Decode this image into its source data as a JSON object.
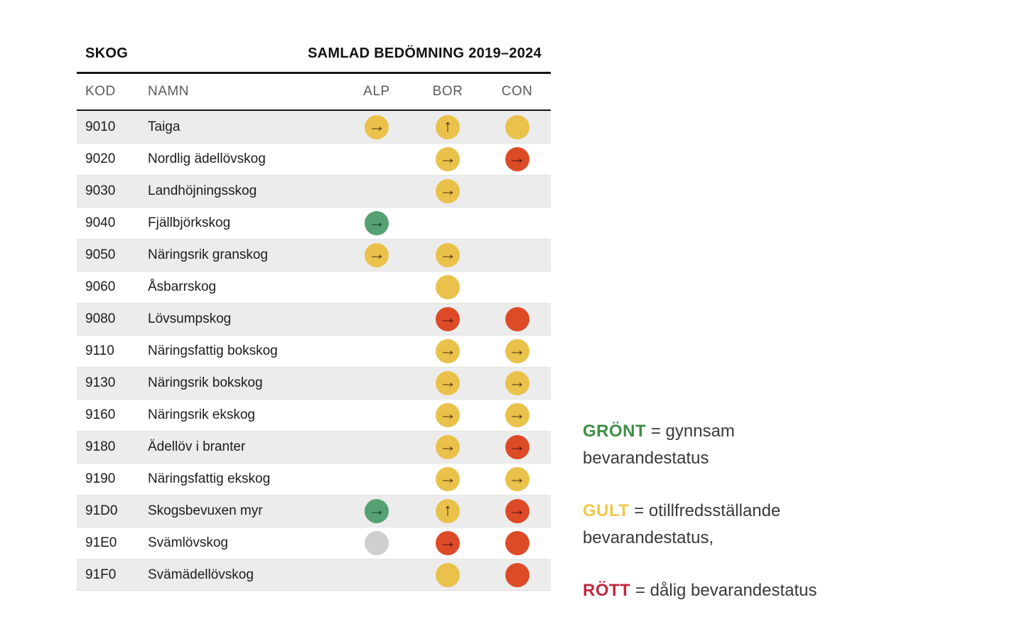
{
  "table": {
    "title_left": "SKOG",
    "title_right": "SAMLAD BEDÖMNING 2019–2024",
    "columns": {
      "kod": "KOD",
      "namn": "NAMN",
      "alp": "ALP",
      "bor": "BOR",
      "con": "CON"
    },
    "rows": [
      {
        "kod": "9010",
        "namn": "Taiga",
        "alp": {
          "color": "yellow",
          "trend": "right"
        },
        "bor": {
          "color": "yellow",
          "trend": "up"
        },
        "con": {
          "color": "yellow",
          "trend": "none"
        }
      },
      {
        "kod": "9020",
        "namn": "Nordlig ädellövskog",
        "alp": null,
        "bor": {
          "color": "yellow",
          "trend": "right"
        },
        "con": {
          "color": "red",
          "trend": "right"
        }
      },
      {
        "kod": "9030",
        "namn": "Landhöjningsskog",
        "alp": null,
        "bor": {
          "color": "yellow",
          "trend": "right"
        },
        "con": null
      },
      {
        "kod": "9040",
        "namn": "Fjällbjörkskog",
        "alp": {
          "color": "green",
          "trend": "right"
        },
        "bor": null,
        "con": null
      },
      {
        "kod": "9050",
        "namn": "Näringsrik granskog",
        "alp": {
          "color": "yellow",
          "trend": "right"
        },
        "bor": {
          "color": "yellow",
          "trend": "right"
        },
        "con": null
      },
      {
        "kod": "9060",
        "namn": "Åsbarrskog",
        "alp": null,
        "bor": {
          "color": "yellow",
          "trend": "none"
        },
        "con": null
      },
      {
        "kod": "9080",
        "namn": "Lövsumpskog",
        "alp": null,
        "bor": {
          "color": "red",
          "trend": "right"
        },
        "con": {
          "color": "red",
          "trend": "none"
        }
      },
      {
        "kod": "9110",
        "namn": "Näringsfattig bokskog",
        "alp": null,
        "bor": {
          "color": "yellow",
          "trend": "right"
        },
        "con": {
          "color": "yellow",
          "trend": "right"
        }
      },
      {
        "kod": "9130",
        "namn": "Näringsrik bokskog",
        "alp": null,
        "bor": {
          "color": "yellow",
          "trend": "right"
        },
        "con": {
          "color": "yellow",
          "trend": "right"
        }
      },
      {
        "kod": "9160",
        "namn": "Näringsrik ekskog",
        "alp": null,
        "bor": {
          "color": "yellow",
          "trend": "right"
        },
        "con": {
          "color": "yellow",
          "trend": "right"
        }
      },
      {
        "kod": "9180",
        "namn": "Ädellöv i branter",
        "alp": null,
        "bor": {
          "color": "yellow",
          "trend": "right"
        },
        "con": {
          "color": "red",
          "trend": "right"
        }
      },
      {
        "kod": "9190",
        "namn": "Näringsfattig ekskog",
        "alp": null,
        "bor": {
          "color": "yellow",
          "trend": "right"
        },
        "con": {
          "color": "yellow",
          "trend": "right"
        }
      },
      {
        "kod": "91D0",
        "namn": "Skogsbevuxen myr",
        "alp": {
          "color": "green",
          "trend": "right"
        },
        "bor": {
          "color": "yellow",
          "trend": "up"
        },
        "con": {
          "color": "red",
          "trend": "right"
        }
      },
      {
        "kod": "91E0",
        "namn": "Svämlövskog",
        "alp": {
          "color": "grey",
          "trend": "none"
        },
        "bor": {
          "color": "red",
          "trend": "right"
        },
        "con": {
          "color": "red",
          "trend": "none"
        }
      },
      {
        "kod": "91F0",
        "namn": "Svämädellövskog",
        "alp": null,
        "bor": {
          "color": "yellow",
          "trend": "none"
        },
        "con": {
          "color": "red",
          "trend": "none"
        }
      }
    ]
  },
  "legend": [
    {
      "term": "GRÖNT",
      "term_color": "green",
      "line1": "= gynnsam",
      "line2": "bevarandestatus"
    },
    {
      "term": "GULT",
      "term_color": "yellow",
      "line1": "= otillfredsställande",
      "line2": "bevarandestatus,"
    },
    {
      "term": "RÖTT",
      "term_color": "red",
      "line1": "= dålig bevarandestatus",
      "line2": ""
    }
  ],
  "status_colors": {
    "yellow": "#e9c14b",
    "red": "#dc4a28",
    "green": "#55a173",
    "grey": "#cfcfcf"
  },
  "legend_colors": {
    "green": "#3e8e46",
    "yellow": "#f0c74b",
    "red": "#c0293f"
  },
  "trend_glyphs": {
    "right": "→",
    "up": "↑",
    "none": ""
  }
}
